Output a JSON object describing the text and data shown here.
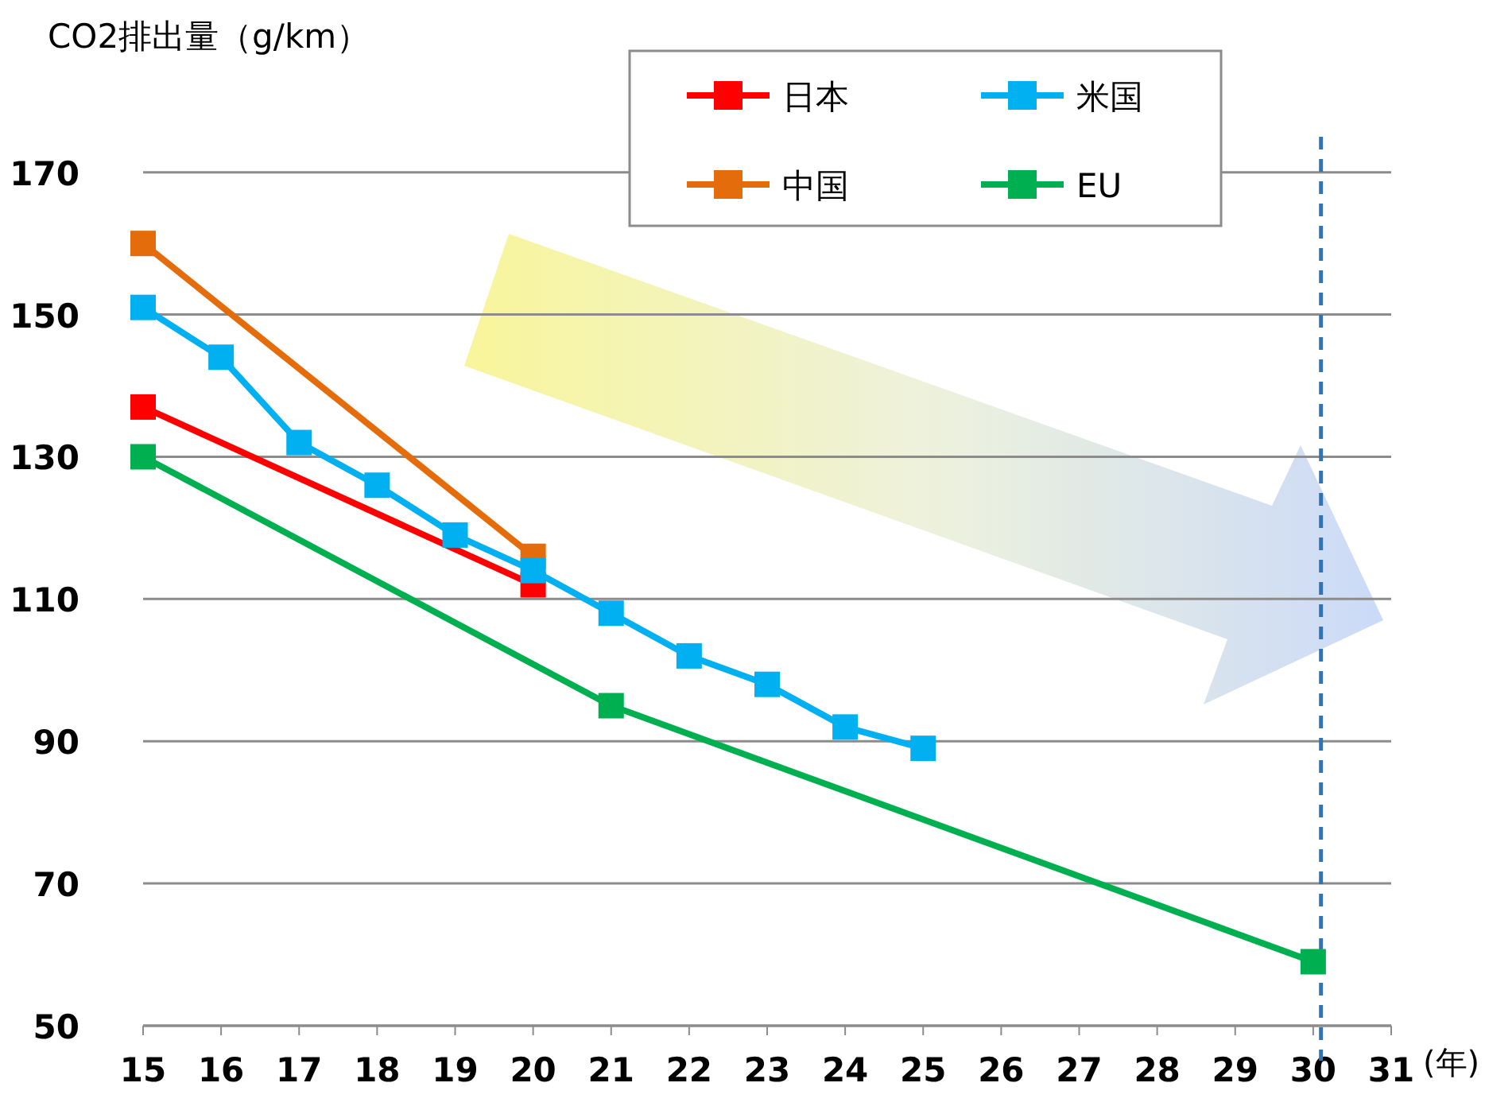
{
  "chart_data": {
    "type": "line",
    "ylabel": "CO2排出量（g/km）",
    "xlabel": "(年)",
    "xlim": [
      15,
      31
    ],
    "xticks": [
      15,
      16,
      17,
      18,
      19,
      20,
      21,
      22,
      23,
      24,
      25,
      26,
      27,
      28,
      29,
      30,
      31
    ],
    "ylim": [
      50,
      175
    ],
    "yticks": [
      50,
      70,
      90,
      110,
      130,
      150,
      170
    ],
    "series": [
      {
        "name": "日本",
        "color": "#ff0000",
        "x": [
          15,
          20
        ],
        "values": [
          137,
          112
        ]
      },
      {
        "name": "米国",
        "color": "#00b0f0",
        "x": [
          15,
          16,
          17,
          18,
          19,
          20,
          21,
          22,
          23,
          24,
          25
        ],
        "values": [
          151,
          144,
          132,
          126,
          119,
          114,
          108,
          102,
          98,
          92,
          89
        ]
      },
      {
        "name": "中国",
        "color": "#e46c0a",
        "x": [
          15,
          20
        ],
        "values": [
          160,
          116
        ]
      },
      {
        "name": "EU",
        "color": "#00b050",
        "x": [
          15,
          21,
          30
        ],
        "values": [
          130,
          95,
          59
        ]
      }
    ],
    "ref_lines": [
      {
        "axis": "x",
        "value": 30.1,
        "color": "#2e75b6",
        "line_style": "dashed"
      }
    ],
    "grid": "y",
    "legend": "top",
    "marker": "square",
    "line_style": "solid"
  }
}
